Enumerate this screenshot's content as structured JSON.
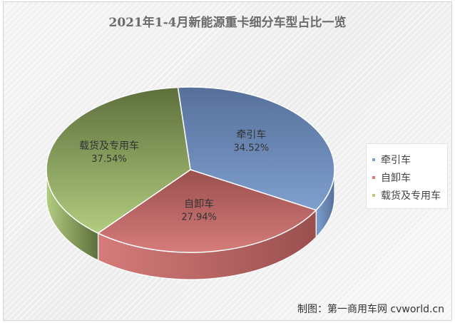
{
  "chart_data": {
    "type": "pie",
    "title": "2021年1-4月新能源重卡细分车型占比一览",
    "slices": [
      {
        "name": "牵引车",
        "label": "34.52%",
        "value": 34.52,
        "color": "#7f9fce",
        "dark": "#56709a"
      },
      {
        "name": "自卸车",
        "label": "27.94%",
        "value": 27.94,
        "color": "#d57c7a",
        "dark": "#9a4f4e"
      },
      {
        "name": "载货及专用车",
        "label": "37.54%",
        "value": 37.54,
        "color": "#b2cc80",
        "dark": "#5d6f3c"
      }
    ],
    "legend_position": "right"
  },
  "footer": "制图：第一商用车网 cvworld.cn"
}
